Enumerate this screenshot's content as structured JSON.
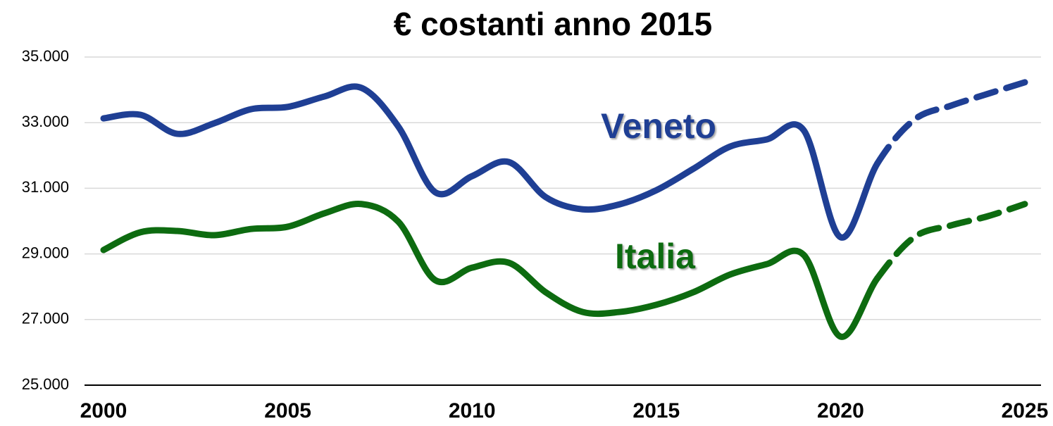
{
  "chart_data": {
    "type": "line",
    "title": "€ costanti anno 2015",
    "x": [
      2000,
      2001,
      2002,
      2003,
      2004,
      2005,
      2006,
      2007,
      2008,
      2009,
      2010,
      2011,
      2012,
      2013,
      2014,
      2015,
      2016,
      2017,
      2018,
      2019,
      2020,
      2021,
      2022,
      2023,
      2024,
      2025
    ],
    "series": [
      {
        "name": "Veneto",
        "color": "#1f3f94",
        "dashed_from_x": 2021,
        "values": [
          33130,
          33240,
          32660,
          32980,
          33410,
          33480,
          33800,
          34060,
          32880,
          30880,
          31370,
          31800,
          30730,
          30360,
          30510,
          30940,
          31590,
          32270,
          32490,
          32770,
          29510,
          31760,
          33090,
          33520,
          33880,
          34230
        ]
      },
      {
        "name": "Italia",
        "color": "#0d6b10",
        "dashed_from_x": 2021,
        "values": [
          29120,
          29660,
          29700,
          29570,
          29760,
          29830,
          30240,
          30520,
          29980,
          28200,
          28580,
          28730,
          27830,
          27230,
          27230,
          27450,
          27830,
          28370,
          28690,
          28970,
          26480,
          28260,
          29510,
          29870,
          30150,
          30520
        ]
      }
    ],
    "xlim": [
      2000,
      2025
    ],
    "xticks": [
      2000,
      2005,
      2010,
      2015,
      2020,
      2025
    ],
    "ylim": [
      25000,
      35000
    ],
    "yticks": [
      {
        "value": 25000,
        "label": "25.000"
      },
      {
        "value": 27000,
        "label": "27.000"
      },
      {
        "value": 29000,
        "label": "29.000"
      },
      {
        "value": 31000,
        "label": "31.000"
      },
      {
        "value": 33000,
        "label": "33.000"
      },
      {
        "value": 35000,
        "label": "35.000"
      }
    ],
    "grid": true
  }
}
